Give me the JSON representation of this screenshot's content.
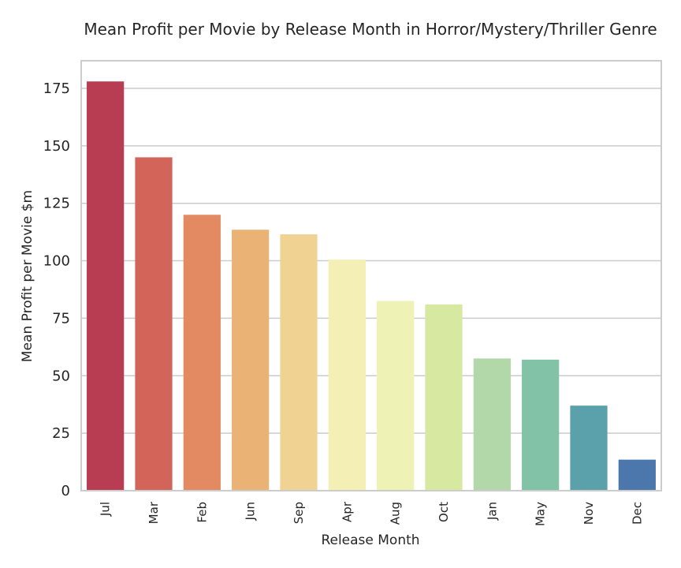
{
  "chart_data": {
    "type": "bar",
    "title": "Mean Profit per Movie by Release Month in Horror/Mystery/Thriller Genre",
    "xlabel": "Release Month",
    "ylabel": "Mean Profit per Movie $m",
    "categories": [
      "Jul",
      "Mar",
      "Feb",
      "Jun",
      "Sep",
      "Apr",
      "Aug",
      "Oct",
      "Jan",
      "May",
      "Nov",
      "Dec"
    ],
    "values": [
      178,
      145,
      120,
      113.5,
      111.5,
      100.5,
      82.5,
      81,
      57.5,
      57,
      37,
      13.5
    ],
    "colors": [
      "#b83d53",
      "#d3645a",
      "#e48a62",
      "#ebb275",
      "#f0d393",
      "#f4efb4",
      "#eef3b5",
      "#d7e8a0",
      "#b2d7a8",
      "#82c2a6",
      "#5aa1ab",
      "#4b77ad"
    ],
    "ylim": [
      0,
      187
    ],
    "yticks": [
      0,
      25,
      50,
      75,
      100,
      125,
      150,
      175
    ],
    "grid": "horizontal",
    "style": {
      "background": "#ffffff",
      "grid_color": "#cccccc",
      "frame_color": "#cccccc",
      "text_color": "#262626"
    }
  }
}
